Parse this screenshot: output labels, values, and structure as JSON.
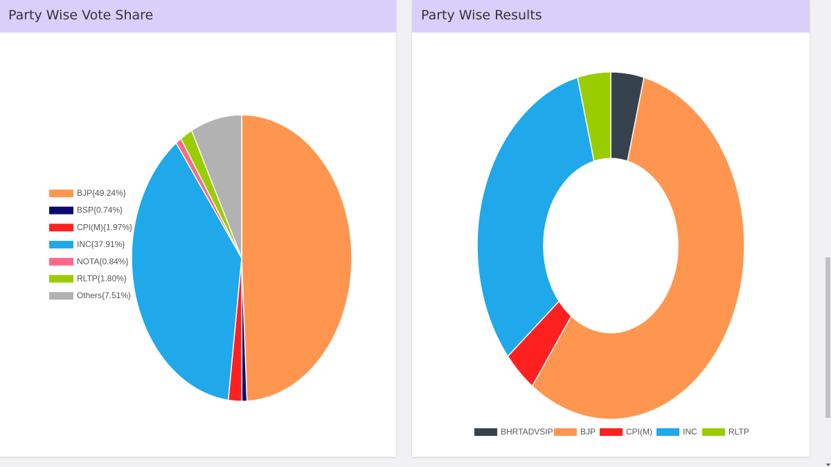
{
  "panels": {
    "vote_share_title": "Party Wise Vote Share",
    "results_title": "Party Wise Results"
  },
  "chart_data": [
    {
      "type": "pie",
      "title": "Party Wise Vote Share",
      "legend_position": "left",
      "categories": [
        "BJP",
        "BSP",
        "CPI(M)",
        "INC",
        "NOTA",
        "RLTP",
        "Others"
      ],
      "values": [
        49.24,
        0.74,
        1.97,
        37.91,
        0.84,
        1.8,
        7.51
      ],
      "legend_labels": [
        "BJP{49.24%}",
        "BSP{0.74%}",
        "CPI(M){1.97%}",
        "INC{37.91%}",
        "NOTA{0.84%}",
        "RLTP{1.80%}",
        "Others{7.51%}"
      ],
      "colors": [
        "#ff9650",
        "#0a0a6e",
        "#ff2020",
        "#1fa9ea",
        "#ff6688",
        "#9acd00",
        "#b2b2b2"
      ]
    },
    {
      "type": "pie",
      "subtype": "doughnut",
      "title": "Party Wise Results",
      "legend_position": "bottom",
      "categories": [
        "BHRTADVSIP",
        "BJP",
        "CPI(M)",
        "INC",
        "RLTP"
      ],
      "values": [
        1,
        14,
        1,
        8,
        1
      ],
      "colors": [
        "#36434e",
        "#ff9650",
        "#ff2020",
        "#1fa9ea",
        "#9acd00"
      ]
    }
  ]
}
